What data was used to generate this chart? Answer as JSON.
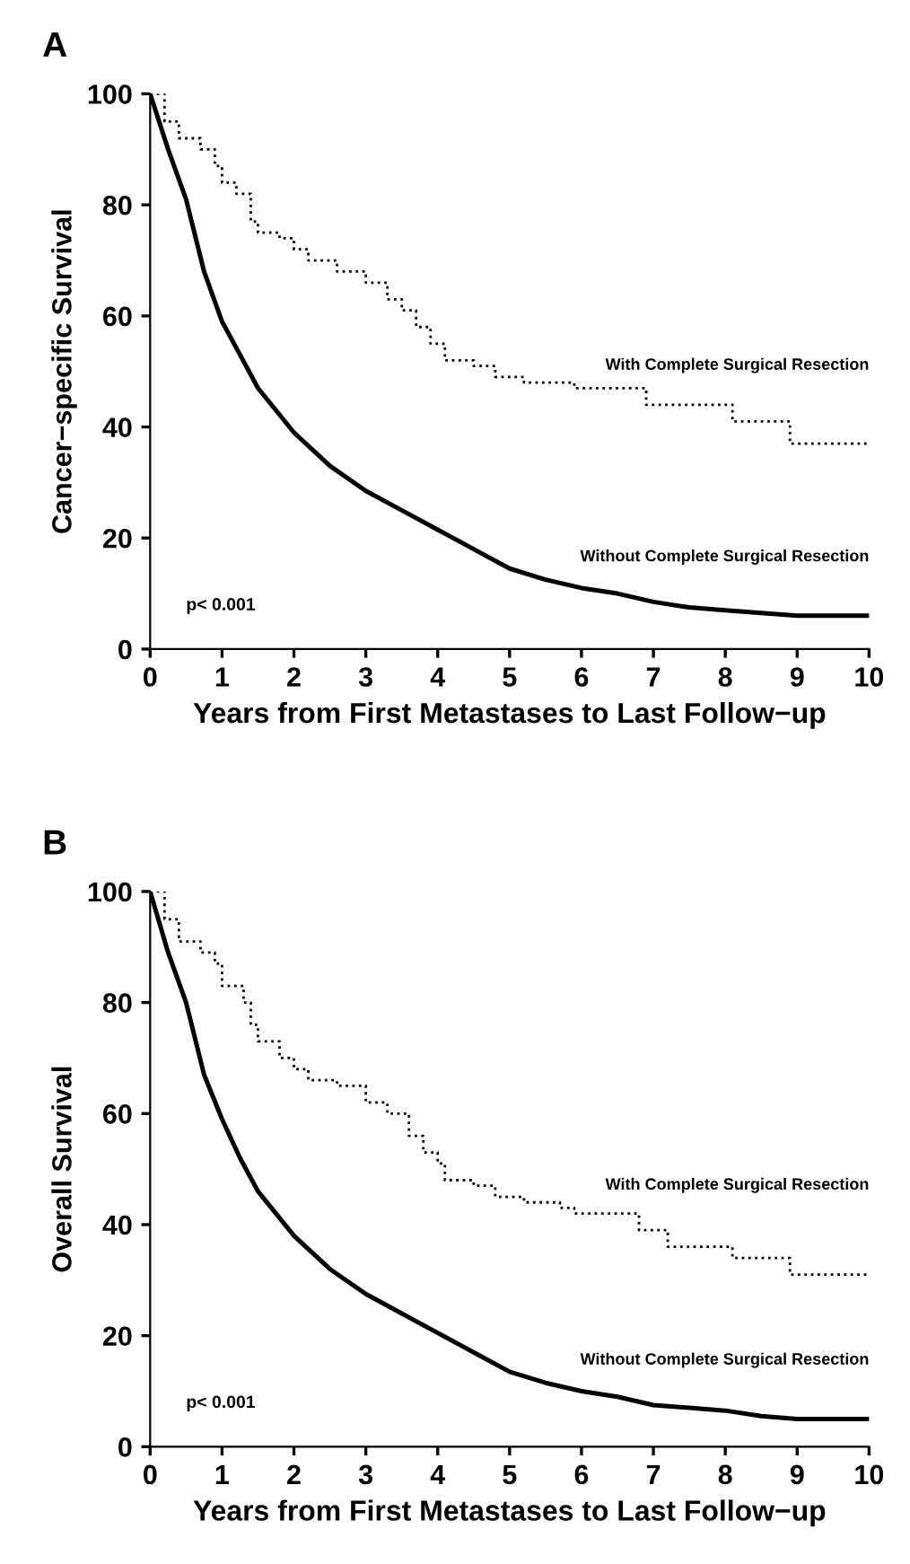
{
  "chart_data": [
    {
      "type": "line",
      "title": "A",
      "xlabel": "Years from First Metastases to Last Follow−up",
      "ylabel": "Cancer−specific Survival",
      "annotations": [
        "p< 0.001"
      ],
      "xlim": [
        0,
        10
      ],
      "ylim": [
        0,
        100
      ],
      "xticks": [
        0,
        1,
        2,
        3,
        4,
        5,
        6,
        7,
        8,
        9,
        10
      ],
      "yticks": [
        0,
        20,
        40,
        60,
        80,
        100
      ],
      "grid": false,
      "legend": false,
      "series": [
        {
          "name": "With Complete Surgical Resection",
          "type": "step",
          "line_style": "dotted",
          "color": "#000000",
          "x": [
            0,
            0.2,
            0.4,
            0.7,
            0.9,
            1.0,
            1.2,
            1.4,
            1.5,
            1.8,
            2.0,
            2.2,
            2.6,
            3.0,
            3.3,
            3.5,
            3.7,
            3.9,
            4.1,
            4.5,
            4.8,
            5.2,
            5.9,
            6.9,
            8.1,
            8.9,
            10
          ],
          "values": [
            100,
            95,
            92,
            90,
            87,
            84,
            82,
            77,
            75,
            74,
            72,
            70,
            68,
            66,
            63,
            61,
            58,
            55,
            52,
            51,
            49,
            48,
            47,
            44,
            41,
            37,
            37
          ]
        },
        {
          "name": "Without Complete Surgical Resection",
          "type": "line",
          "line_style": "solid",
          "color": "#000000",
          "x": [
            0,
            0.25,
            0.5,
            0.75,
            1,
            1.25,
            1.5,
            1.75,
            2,
            2.5,
            3,
            3.5,
            4,
            4.5,
            5,
            5.5,
            6,
            6.5,
            7,
            7.5,
            8,
            8.5,
            9,
            10
          ],
          "values": [
            100,
            90,
            81,
            68,
            59,
            53,
            47,
            43,
            39,
            33,
            28.5,
            25,
            21.5,
            18,
            14.5,
            12.5,
            11,
            10,
            8.5,
            7.5,
            7,
            6.5,
            6,
            6
          ]
        }
      ]
    },
    {
      "type": "line",
      "title": "B",
      "xlabel": "Years from First Metastases to Last Follow−up",
      "ylabel": "Overall Survival",
      "annotations": [
        "p< 0.001"
      ],
      "xlim": [
        0,
        10
      ],
      "ylim": [
        0,
        100
      ],
      "xticks": [
        0,
        1,
        2,
        3,
        4,
        5,
        6,
        7,
        8,
        9,
        10
      ],
      "yticks": [
        0,
        20,
        40,
        60,
        80,
        100
      ],
      "grid": false,
      "legend": false,
      "series": [
        {
          "name": "With Complete Surgical Resection",
          "type": "step",
          "line_style": "dotted",
          "color": "#000000",
          "x": [
            0,
            0.2,
            0.4,
            0.7,
            0.9,
            1.0,
            1.3,
            1.4,
            1.5,
            1.8,
            2.0,
            2.2,
            2.6,
            3.0,
            3.3,
            3.6,
            3.8,
            4.0,
            4.1,
            4.5,
            4.8,
            5.2,
            5.7,
            5.9,
            6.8,
            7.2,
            8.1,
            8.9,
            10
          ],
          "values": [
            100,
            95,
            91,
            89,
            87,
            83,
            80,
            76,
            73,
            70,
            68,
            66,
            65,
            62,
            60,
            56,
            53,
            51,
            48,
            47,
            45,
            44,
            43,
            42,
            39,
            36,
            34,
            31,
            31
          ]
        },
        {
          "name": "Without Complete Surgical Resection",
          "type": "line",
          "line_style": "solid",
          "color": "#000000",
          "x": [
            0,
            0.25,
            0.5,
            0.75,
            1,
            1.25,
            1.5,
            1.75,
            2,
            2.5,
            3,
            3.5,
            4,
            4.5,
            5,
            5.5,
            6,
            6.5,
            7,
            7.5,
            8,
            8.5,
            9,
            10
          ],
          "values": [
            100,
            89,
            80,
            67,
            59,
            52,
            46,
            42,
            38,
            32,
            27.5,
            24,
            20.5,
            17,
            13.5,
            11.5,
            10,
            9,
            7.5,
            7,
            6.5,
            5.5,
            5,
            5
          ]
        }
      ]
    }
  ]
}
